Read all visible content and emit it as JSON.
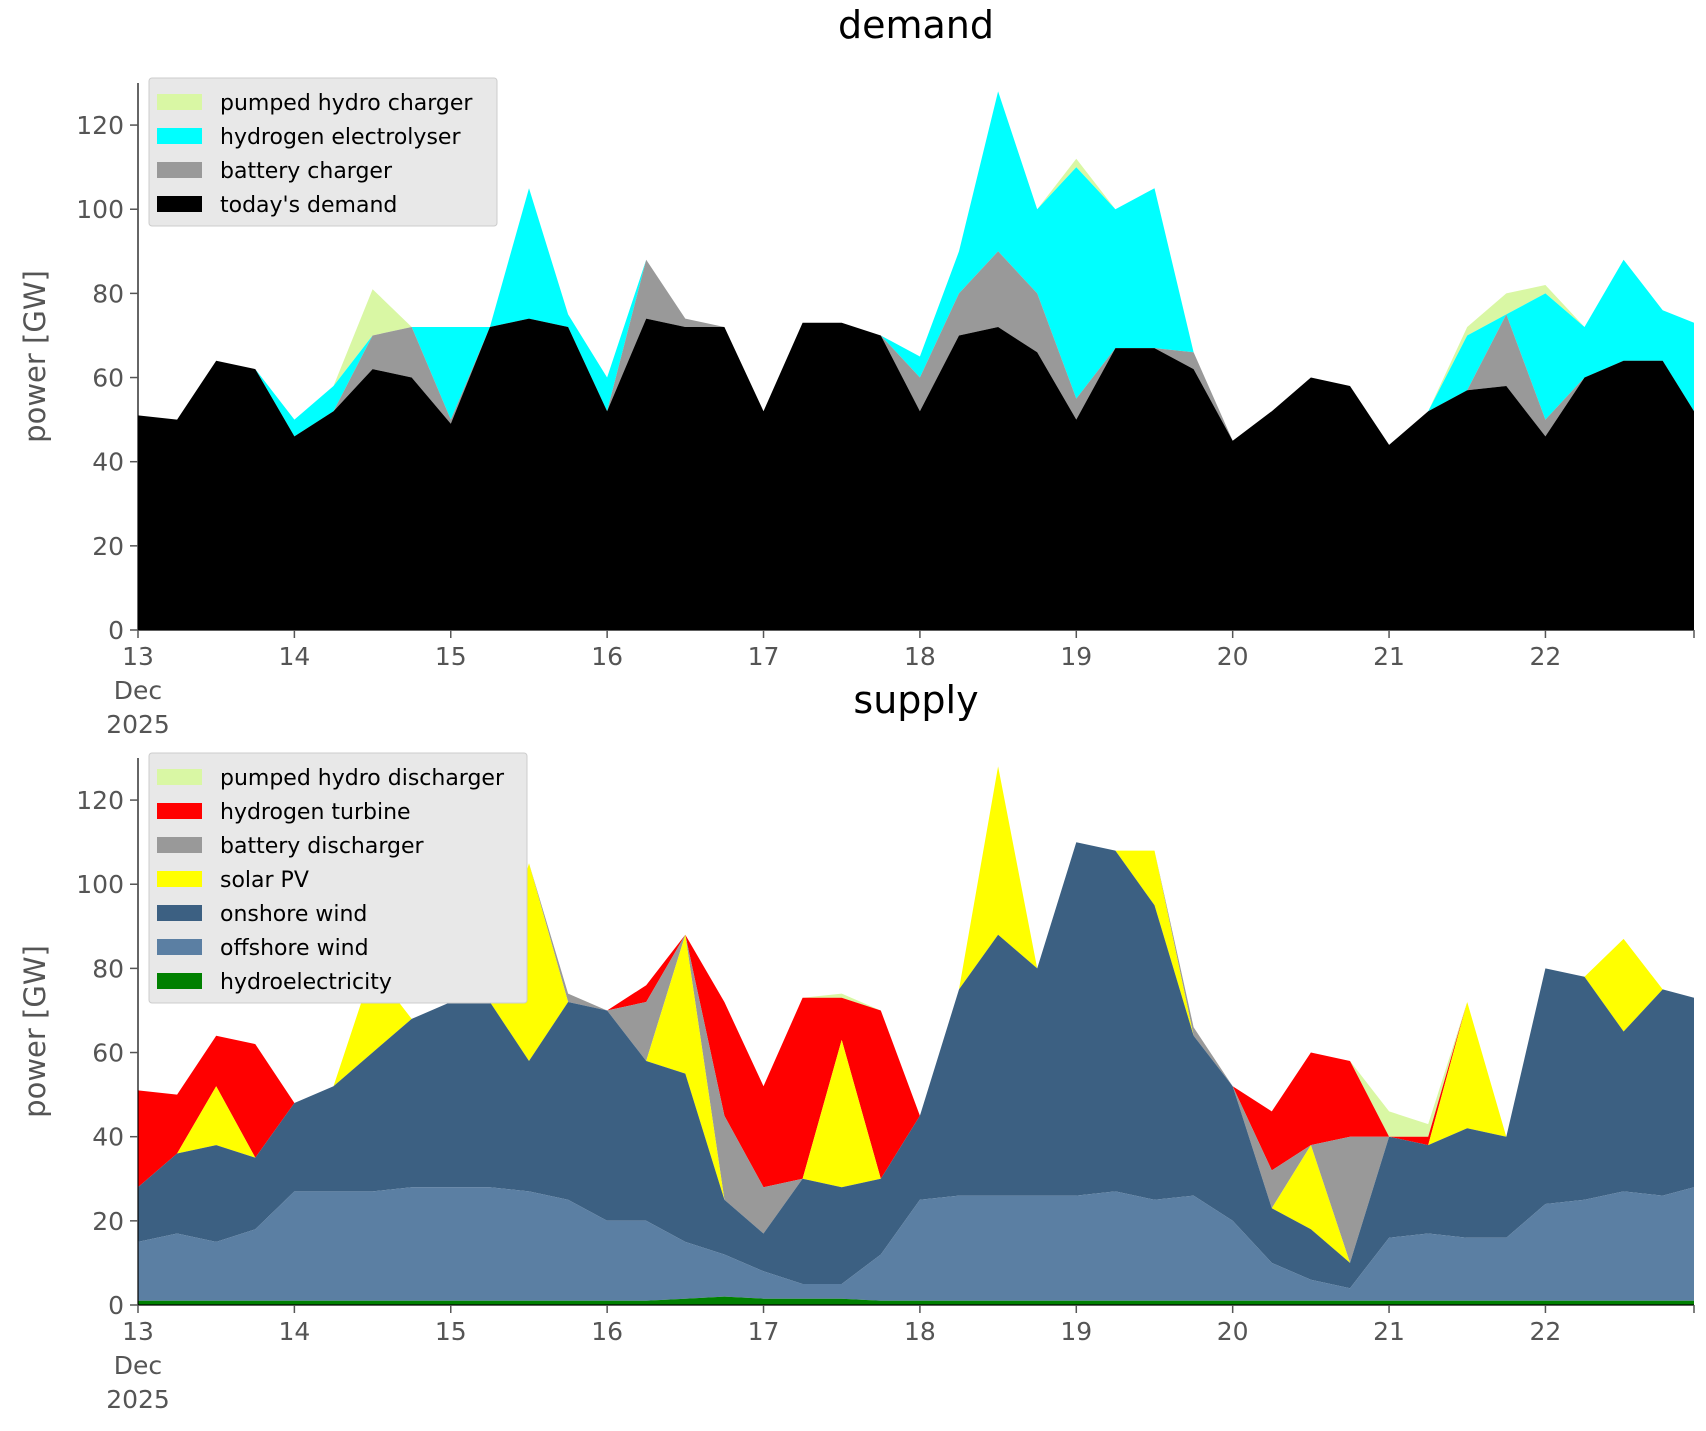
{
  "chart_data": [
    {
      "type": "area",
      "stacked": true,
      "title": "demand",
      "ylabel": "power [GW]",
      "xlabel": "",
      "ylim": [
        0,
        130
      ],
      "yticks": [
        0,
        20,
        40,
        60,
        80,
        100,
        120
      ],
      "xticks": [
        {
          "x": 13,
          "label": [
            "13",
            "Dec",
            "2025"
          ]
        },
        {
          "x": 14,
          "label": [
            "14"
          ]
        },
        {
          "x": 15,
          "label": [
            "15"
          ]
        },
        {
          "x": 16,
          "label": [
            "16"
          ]
        },
        {
          "x": 17,
          "label": [
            "17"
          ]
        },
        {
          "x": 18,
          "label": [
            "18"
          ]
        },
        {
          "x": 19,
          "label": [
            "19"
          ]
        },
        {
          "x": 20,
          "label": [
            "20"
          ]
        },
        {
          "x": 21,
          "label": [
            "21"
          ]
        },
        {
          "x": 22,
          "label": [
            "22"
          ]
        }
      ],
      "xlim": [
        13,
        22.95
      ],
      "grid": false,
      "legend_position": "top-left",
      "background": "#ffffff",
      "stack_note": "y values are cumulative tops of each stacked layer (GW)",
      "x": [
        13.0,
        13.25,
        13.5,
        13.75,
        14.0,
        14.25,
        14.5,
        14.75,
        15.0,
        15.25,
        15.5,
        15.75,
        16.0,
        16.25,
        16.5,
        16.75,
        17.0,
        17.25,
        17.5,
        17.75,
        18.0,
        18.25,
        18.5,
        18.75,
        19.0,
        19.25,
        19.5,
        19.75,
        20.0,
        20.25,
        20.5,
        20.75,
        21.0,
        21.25,
        21.5,
        21.75,
        22.0,
        22.25,
        22.5,
        22.75,
        22.95
      ],
      "series": [
        {
          "name": "today's demand",
          "color": "#000000",
          "values": [
            51,
            50,
            64,
            62,
            46,
            52,
            62,
            60,
            49,
            72,
            74,
            72,
            52,
            74,
            72,
            72,
            52,
            73,
            73,
            70,
            52,
            70,
            72,
            66,
            50,
            67,
            67,
            62,
            45,
            52,
            60,
            58,
            44,
            52,
            57,
            58,
            46,
            60,
            64,
            64,
            52
          ]
        },
        {
          "name": "battery charger",
          "color": "#999999",
          "values": [
            51,
            50,
            64,
            62,
            46,
            52,
            70,
            72,
            50,
            72,
            74,
            72,
            52,
            88,
            74,
            72,
            52,
            73,
            73,
            70,
            60,
            80,
            90,
            80,
            55,
            67,
            67,
            66,
            45,
            52,
            60,
            58,
            44,
            52,
            57,
            75,
            50,
            60,
            64,
            64,
            52
          ]
        },
        {
          "name": "hydrogen electrolyser",
          "color": "#00ffff",
          "values": [
            51,
            50,
            64,
            62,
            50,
            58,
            70,
            72,
            72,
            72,
            105,
            75,
            60,
            88,
            74,
            72,
            52,
            73,
            73,
            70,
            65,
            90,
            128,
            100,
            110,
            100,
            105,
            66,
            45,
            52,
            60,
            58,
            44,
            52,
            70,
            75,
            80,
            72,
            88,
            76,
            73
          ]
        },
        {
          "name": "pumped hydro charger",
          "color": "#d9f7a4",
          "values": [
            51,
            50,
            64,
            62,
            50,
            58,
            81,
            72,
            72,
            72,
            105,
            75,
            60,
            88,
            74,
            72,
            52,
            73,
            73,
            70,
            65,
            90,
            128,
            100,
            112,
            100,
            105,
            66,
            45,
            52,
            60,
            58,
            44,
            52,
            72,
            80,
            82,
            72,
            88,
            76,
            73
          ]
        }
      ]
    },
    {
      "type": "area",
      "stacked": true,
      "title": "supply",
      "ylabel": "power [GW]",
      "xlabel": "",
      "ylim": [
        0,
        130
      ],
      "yticks": [
        0,
        20,
        40,
        60,
        80,
        100,
        120
      ],
      "xticks": [
        {
          "x": 13,
          "label": [
            "13",
            "Dec",
            "2025"
          ]
        },
        {
          "x": 14,
          "label": [
            "14"
          ]
        },
        {
          "x": 15,
          "label": [
            "15"
          ]
        },
        {
          "x": 16,
          "label": [
            "16"
          ]
        },
        {
          "x": 17,
          "label": [
            "17"
          ]
        },
        {
          "x": 18,
          "label": [
            "18"
          ]
        },
        {
          "x": 19,
          "label": [
            "19"
          ]
        },
        {
          "x": 20,
          "label": [
            "20"
          ]
        },
        {
          "x": 21,
          "label": [
            "21"
          ]
        },
        {
          "x": 22,
          "label": [
            "22"
          ]
        }
      ],
      "xlim": [
        13,
        22.95
      ],
      "grid": false,
      "legend_position": "top-left",
      "background": "#ffffff",
      "stack_note": "y values are cumulative tops of each stacked layer (GW)",
      "x": [
        13.0,
        13.25,
        13.5,
        13.75,
        14.0,
        14.25,
        14.5,
        14.75,
        15.0,
        15.25,
        15.5,
        15.75,
        16.0,
        16.25,
        16.5,
        16.75,
        17.0,
        17.25,
        17.5,
        17.75,
        18.0,
        18.25,
        18.5,
        18.75,
        19.0,
        19.25,
        19.5,
        19.75,
        20.0,
        20.25,
        20.5,
        20.75,
        21.0,
        21.25,
        21.5,
        21.75,
        22.0,
        22.25,
        22.5,
        22.75,
        22.95
      ],
      "series": [
        {
          "name": "hydroelectricity",
          "color": "#008000",
          "values": [
            1,
            1,
            1,
            1,
            1,
            1,
            1,
            1,
            1,
            1,
            1,
            1,
            1,
            1,
            1.5,
            2,
            1.5,
            1.5,
            1.5,
            1,
            1,
            1,
            1,
            1,
            1,
            1,
            1,
            1,
            1,
            1,
            1,
            1,
            1,
            1,
            1,
            1,
            1,
            1,
            1,
            1,
            1
          ]
        },
        {
          "name": "offshore wind",
          "color": "#5b7fa3",
          "values": [
            15,
            17,
            15,
            18,
            27,
            27,
            27,
            28,
            28,
            28,
            27,
            25,
            20,
            20,
            15,
            12,
            8,
            5,
            5,
            12,
            25,
            26,
            26,
            26,
            26,
            27,
            25,
            26,
            20,
            10,
            6,
            4,
            16,
            17,
            16,
            16,
            24,
            25,
            27,
            26,
            28
          ]
        },
        {
          "name": "onshore wind",
          "color": "#3c6082",
          "values": [
            28,
            36,
            38,
            35,
            48,
            52,
            60,
            68,
            72,
            72,
            58,
            72,
            70,
            58,
            55,
            25,
            17,
            30,
            28,
            30,
            45,
            75,
            88,
            80,
            110,
            108,
            95,
            64,
            52,
            23,
            18,
            10,
            40,
            38,
            42,
            40,
            80,
            78,
            65,
            75,
            73
          ]
        },
        {
          "name": "solar PV",
          "color": "#ffff00",
          "values": [
            28,
            36,
            52,
            35,
            48,
            52,
            80,
            68,
            72,
            72,
            105,
            72,
            70,
            58,
            88,
            25,
            17,
            30,
            63,
            30,
            45,
            75,
            128,
            80,
            110,
            108,
            108,
            64,
            52,
            23,
            38,
            10,
            40,
            38,
            72,
            40,
            80,
            78,
            87,
            75,
            73
          ]
        },
        {
          "name": "battery discharger",
          "color": "#999999",
          "values": [
            28,
            36,
            52,
            35,
            48,
            52,
            80,
            68,
            72,
            72,
            105,
            74,
            70,
            72,
            88,
            45,
            28,
            30,
            63,
            30,
            45,
            75,
            128,
            80,
            110,
            108,
            108,
            66,
            52,
            32,
            38,
            40,
            40,
            38,
            72,
            40,
            80,
            78,
            87,
            75,
            73
          ]
        },
        {
          "name": "hydrogen turbine",
          "color": "#ff0000",
          "values": [
            51,
            50,
            64,
            62,
            48,
            52,
            80,
            68,
            72,
            72,
            105,
            74,
            70,
            76,
            88,
            72,
            52,
            73,
            73,
            70,
            45,
            75,
            128,
            80,
            110,
            108,
            108,
            66,
            52,
            46,
            60,
            58,
            40,
            40,
            72,
            40,
            80,
            78,
            87,
            75,
            73
          ]
        },
        {
          "name": "pumped hydro discharger",
          "color": "#d9f7a4",
          "values": [
            51,
            50,
            64,
            62,
            48,
            52,
            80,
            68,
            72,
            72,
            105,
            74,
            70,
            76,
            88,
            72,
            52,
            73,
            74,
            70,
            45,
            75,
            128,
            80,
            110,
            108,
            108,
            66,
            52,
            46,
            60,
            58,
            46,
            43,
            72,
            40,
            80,
            78,
            87,
            75,
            73
          ]
        }
      ]
    }
  ]
}
